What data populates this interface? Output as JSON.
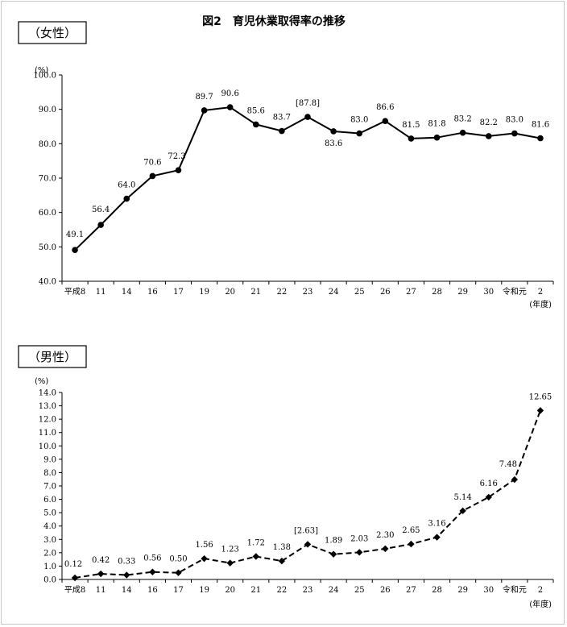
{
  "figure_title": "図2　育児休業取得率の推移",
  "chart_data": [
    {
      "type": "line",
      "section_label": "（女性）",
      "unit_label": "(%)",
      "xlabel": "(年度)",
      "categories": [
        "平成8",
        "11",
        "14",
        "16",
        "17",
        "19",
        "20",
        "21",
        "22",
        "23",
        "24",
        "25",
        "26",
        "27",
        "28",
        "29",
        "30",
        "令和元",
        "2"
      ],
      "values": [
        49.1,
        56.4,
        64.0,
        70.6,
        72.3,
        89.7,
        90.6,
        85.6,
        83.7,
        87.8,
        83.6,
        83.0,
        86.6,
        81.5,
        81.8,
        83.2,
        82.2,
        83.0,
        81.6
      ],
      "value_labels": [
        "49.1",
        "56.4",
        "64.0",
        "70.6",
        "72.3",
        "89.7",
        "90.6",
        "85.6",
        "83.7",
        "[87.8]",
        "83.6",
        "83.0",
        "86.6",
        "81.5",
        "81.8",
        "83.2",
        "82.2",
        "83.0",
        "81.6"
      ],
      "ylim": [
        40,
        100
      ],
      "yticks": [
        "40.0",
        "50.0",
        "60.0",
        "70.0",
        "80.0",
        "90.0",
        "100.0"
      ],
      "line_style": "solid",
      "marker": "circle",
      "color": "#000000"
    },
    {
      "type": "line",
      "section_label": "（男性）",
      "unit_label": "(%)",
      "xlabel": "(年度)",
      "categories": [
        "平成8",
        "11",
        "14",
        "16",
        "17",
        "19",
        "20",
        "21",
        "22",
        "23",
        "24",
        "25",
        "26",
        "27",
        "28",
        "29",
        "30",
        "令和元",
        "2"
      ],
      "values": [
        0.12,
        0.42,
        0.33,
        0.56,
        0.5,
        1.56,
        1.23,
        1.72,
        1.38,
        2.63,
        1.89,
        2.03,
        2.3,
        2.65,
        3.16,
        5.14,
        6.16,
        7.48,
        12.65
      ],
      "value_labels": [
        "0.12",
        "0.42",
        "0.33",
        "0.56",
        "0.50",
        "1.56",
        "1.23",
        "1.72",
        "1.38",
        "[2.63]",
        "1.89",
        "2.03",
        "2.30",
        "2.65",
        "3.16",
        "5.14",
        "6.16",
        "7.48",
        "12.65"
      ],
      "ylim": [
        0,
        14
      ],
      "yticks": [
        "0.0",
        "1.0",
        "2.0",
        "3.0",
        "4.0",
        "5.0",
        "6.0",
        "7.0",
        "8.0",
        "9.0",
        "10.0",
        "11.0",
        "12.0",
        "13.0",
        "14.0"
      ],
      "line_style": "dashed",
      "marker": "diamond",
      "color": "#000000"
    }
  ]
}
